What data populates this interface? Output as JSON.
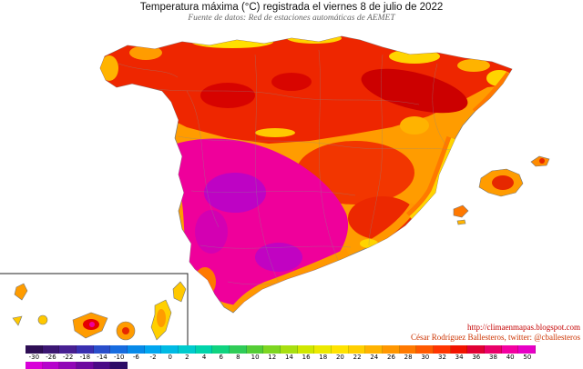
{
  "header": {
    "title": "Temperatura máxima (°C) registrada el viernes 8 de julio de 2022",
    "subtitle": "Fuente de datos: Red de estaciones automáticas de AEMET"
  },
  "credits": {
    "url": "http://climaenmapas.blogspot.com",
    "author": "César Rodríguez Ballesteros, twitter: @cballesteros"
  },
  "colors": {
    "hottest_magenta": "#ef009b",
    "hot_core_purple": "#b803c9",
    "red": "#ee2600",
    "base_orange": "#ff9c00",
    "yellow": "#ffd400"
  },
  "scale": {
    "row1": [
      {
        "label": "-30",
        "color": "#2e0e54"
      },
      {
        "label": "-26",
        "color": "#3c1773"
      },
      {
        "label": "-22",
        "color": "#482092"
      },
      {
        "label": "-18",
        "color": "#3a2fb0"
      },
      {
        "label": "-14",
        "color": "#2a4ecb"
      },
      {
        "label": "-10",
        "color": "#176ce0"
      },
      {
        "label": "-6",
        "color": "#078ae9"
      },
      {
        "label": "-2",
        "color": "#00a6f0"
      },
      {
        "label": "0",
        "color": "#00bae4"
      },
      {
        "label": "2",
        "color": "#00cbcd"
      },
      {
        "label": "4",
        "color": "#00d4ab"
      },
      {
        "label": "6",
        "color": "#10d380"
      },
      {
        "label": "8",
        "color": "#30cc58"
      },
      {
        "label": "10",
        "color": "#55cd36"
      },
      {
        "label": "12",
        "color": "#7ed621"
      },
      {
        "label": "14",
        "color": "#a8df10"
      },
      {
        "label": "16",
        "color": "#d0e700"
      },
      {
        "label": "18",
        "color": "#ece900"
      },
      {
        "label": "20",
        "color": "#ffe300"
      },
      {
        "label": "22",
        "color": "#ffcf00"
      },
      {
        "label": "24",
        "color": "#ffb300"
      },
      {
        "label": "26",
        "color": "#ff9700"
      },
      {
        "label": "28",
        "color": "#ff7900"
      },
      {
        "label": "30",
        "color": "#ff5900"
      },
      {
        "label": "32",
        "color": "#ff3500"
      },
      {
        "label": "34",
        "color": "#f11300"
      },
      {
        "label": "36",
        "color": "#e00034"
      },
      {
        "label": "38",
        "color": "#e90069"
      },
      {
        "label": "40",
        "color": "#f300a1"
      },
      {
        "label": "50",
        "color": "#e700c6"
      }
    ],
    "row2": [
      "#d800d8",
      "#b503cb",
      "#9106b6",
      "#6d089f",
      "#4a0a86",
      "#2d0b66"
    ]
  }
}
